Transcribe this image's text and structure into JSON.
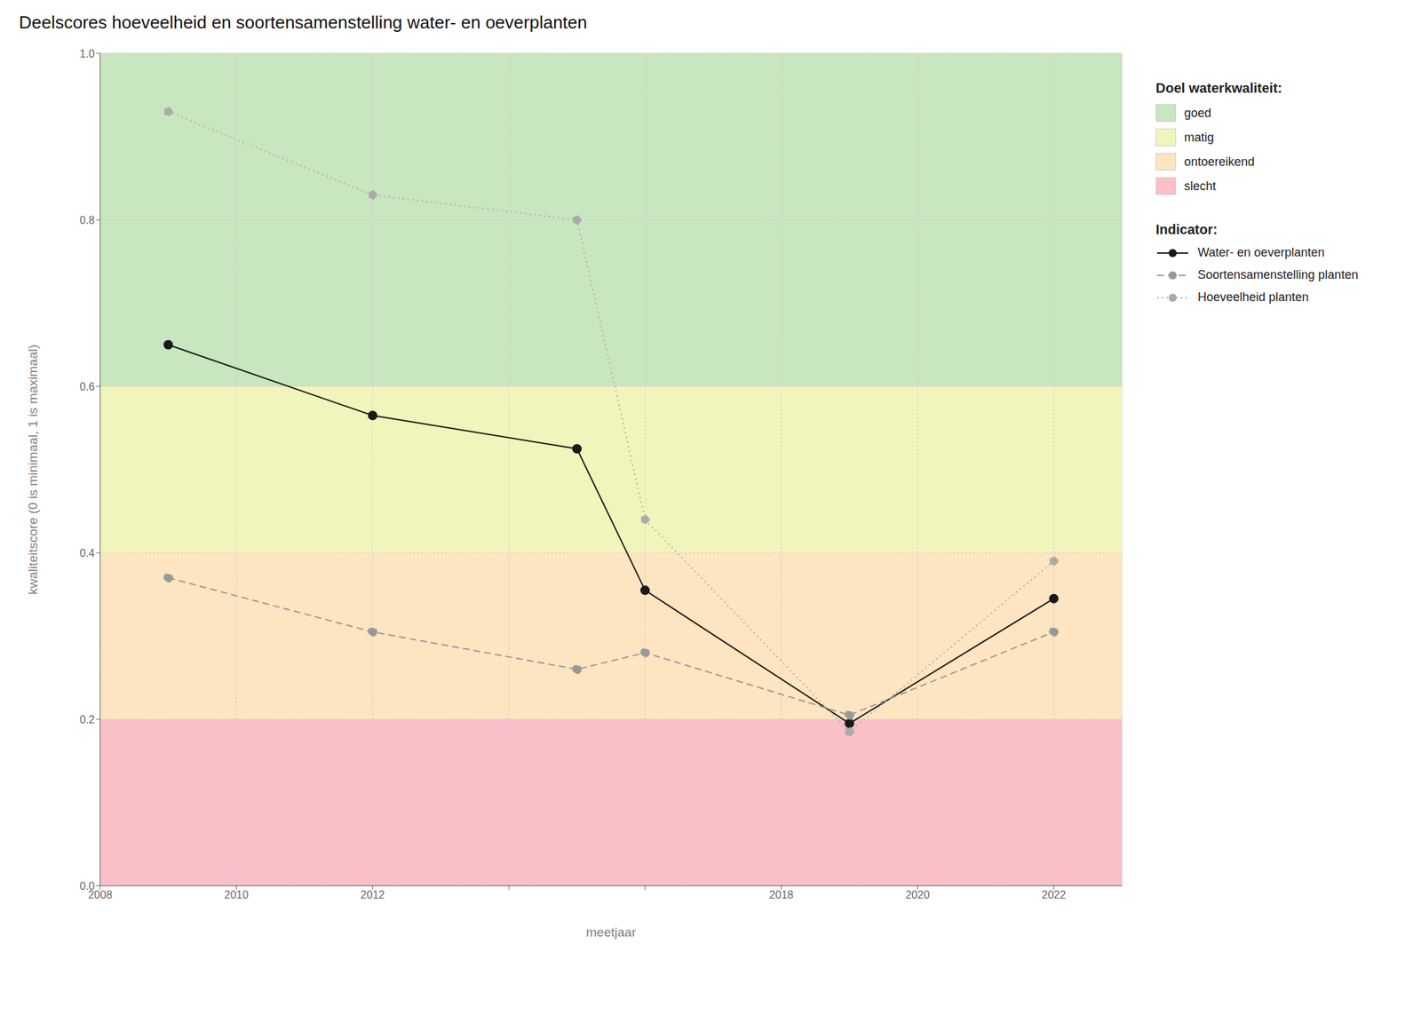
{
  "chart_data": {
    "type": "line",
    "title": "Deelscores hoeveelheid en soortensamenstelling water- en oeverplanten",
    "x_label": "meetjaar",
    "y_label": "kwaliteitscore (0 is minimaal, 1 is maximaal)",
    "x": [
      2009,
      2012,
      2015,
      2016,
      2019,
      2022
    ],
    "xlim": [
      2008,
      2023
    ],
    "xticks": [
      2008,
      2010,
      2012,
      {
        "value": 2014,
        "label": null
      },
      {
        "value": 2016,
        "label": null
      },
      2018,
      2020,
      2022
    ],
    "ylim": [
      0.0,
      1.0
    ],
    "yticks": [
      {
        "value": 0.0,
        "label": "0.0"
      },
      0.2,
      0.4,
      0.6,
      0.8,
      {
        "value": 1.0,
        "label": "1.0"
      }
    ],
    "grid": true,
    "legend": "right",
    "legend_title": "Indicator:",
    "bands_title": "Doel waterkwaliteit:",
    "bands": [
      {
        "name": "goed",
        "from": 0.6,
        "to": 1.0,
        "color": "#c8e6c0"
      },
      {
        "name": "matig",
        "from": 0.4,
        "to": 0.6,
        "color": "#f2f5bb"
      },
      {
        "name": "ontoereikend",
        "from": 0.2,
        "to": 0.4,
        "color": "#fce5c0"
      },
      {
        "name": "slecht",
        "from": 0.0,
        "to": 0.2,
        "color": "#f9c0c8"
      }
    ],
    "series": [
      {
        "name": "Water- en oeverplanten",
        "color": "#1a1a1a",
        "line_style": "solid",
        "marker": "circle",
        "values": [
          0.65,
          0.565,
          0.525,
          0.355,
          0.195,
          0.345
        ]
      },
      {
        "name": "Soortensamenstelling planten",
        "color": "#999999",
        "line_style": "dashed",
        "marker": "circle",
        "values": [
          0.37,
          0.305,
          0.26,
          0.28,
          0.205,
          0.305
        ]
      },
      {
        "name": "Hoeveelheid planten",
        "color": "#aaaaaa",
        "line_style": "dotted",
        "marker": "circle",
        "values": [
          0.93,
          0.83,
          0.8,
          0.44,
          0.185,
          0.39
        ]
      }
    ]
  }
}
